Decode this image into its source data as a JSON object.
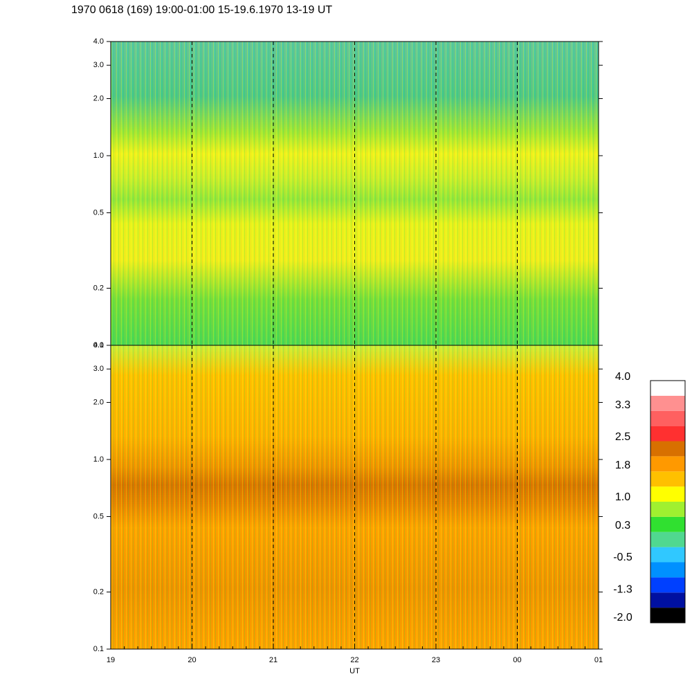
{
  "title": "1970 0618 (169) 19:00-01:00 15-19.6.1970  13-19 UT",
  "chart_data": [
    {
      "type": "heatmap",
      "log_y": true,
      "ylim": [
        0.1,
        4.0
      ],
      "yticks": [
        0.1,
        0.2,
        0.5,
        {
          "value": 1.0,
          "label": "1.0"
        },
        {
          "value": 2.0,
          "label": "2.0"
        },
        {
          "value": 3.0,
          "label": "3.0"
        },
        {
          "value": 4.0,
          "label": "4.0"
        }
      ],
      "grid": true
    },
    {
      "type": "heatmap",
      "log_y": true,
      "ylim": [
        0.1,
        4.0
      ],
      "yticks": [
        0.1,
        0.2,
        0.5,
        {
          "value": 1.0,
          "label": "1.0"
        },
        {
          "value": 2.0,
          "label": "2.0"
        },
        {
          "value": 3.0,
          "label": "3.0"
        },
        {
          "value": 4.0,
          "label": "4.0"
        }
      ],
      "categories": [
        "19",
        "20",
        "21",
        "22",
        "23",
        "00",
        "01"
      ],
      "xlabel": "UT",
      "grid": true,
      "colorbar": {
        "clim": [
          -2.0,
          4.0
        ],
        "colors": [
          "#000000",
          "#0010a0",
          "#0040ff",
          "#0090ff",
          "#30c8ff",
          "#50d890",
          "#30e030",
          "#a0f030",
          "#ffff00",
          "#ffc000",
          "#ff9900",
          "#d87000",
          "#ff3030",
          "#ff6060",
          "#ff9090",
          "#ffffff"
        ],
        "ticks": [
          {
            "value": -2.0,
            "label": "-2.0"
          },
          -1.3,
          -0.5,
          0.3,
          {
            "value": 1.0,
            "label": "1.0"
          },
          1.8,
          2.5,
          3.3,
          {
            "value": 4.0,
            "label": "4.0"
          }
        ]
      }
    }
  ]
}
